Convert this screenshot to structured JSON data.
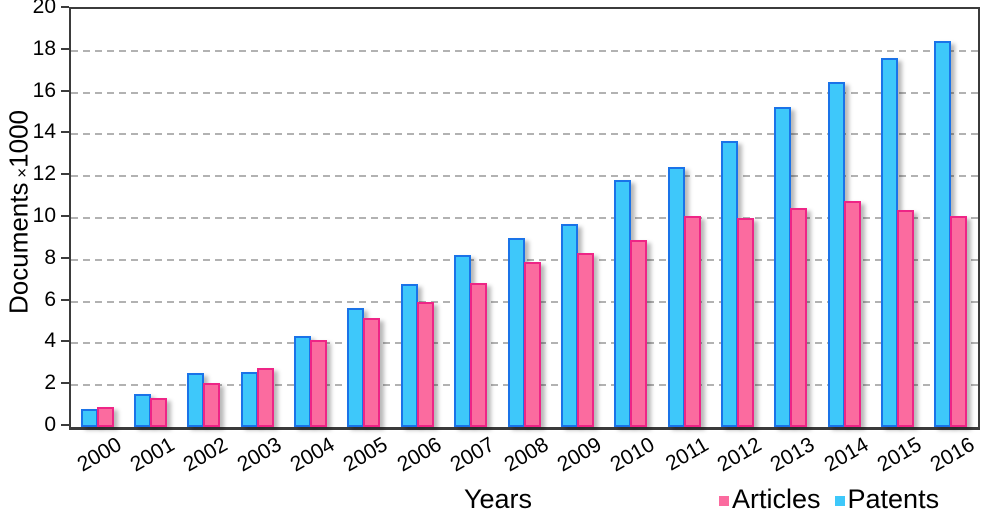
{
  "chart_data": {
    "type": "bar",
    "title": "",
    "xlabel": "Years",
    "ylabel": "Documents ×1000",
    "ylabel_rich": {
      "prefix": "Documents",
      "times_symbol": "×",
      "suffix": "1000"
    },
    "ylim": [
      0,
      20
    ],
    "ytick_step": 2,
    "ytick_labels": [
      "0",
      "2",
      "4",
      "6",
      "8",
      "10",
      "12",
      "14",
      "16",
      "18",
      "20"
    ],
    "grid": "horizontal-dashed",
    "gridline_color": "#b2b2b2",
    "axis_color": "#3b3b3b",
    "legend_position": "bottom-right",
    "legend_order": [
      "Articles",
      "Patents"
    ],
    "categories": [
      "2000",
      "2001",
      "2002",
      "2003",
      "2004",
      "2005",
      "2006",
      "2007",
      "2008",
      "2009",
      "2010",
      "2011",
      "2012",
      "2013",
      "2014",
      "2015",
      "2016"
    ],
    "series": [
      {
        "name": "Patents",
        "fill_color": "#3ec8fa",
        "border_color": "#1a73e8",
        "values": [
          0.85,
          1.6,
          2.6,
          2.65,
          4.35,
          5.7,
          6.85,
          8.25,
          9.05,
          9.7,
          11.8,
          12.45,
          13.7,
          15.3,
          16.5,
          17.65,
          18.45
        ]
      },
      {
        "name": "Articles",
        "fill_color": "#fb6b9f",
        "border_color": "#ee2586",
        "values": [
          0.95,
          1.4,
          2.1,
          2.8,
          4.15,
          5.2,
          6.0,
          6.9,
          7.9,
          8.35,
          8.95,
          10.1,
          10.0,
          10.5,
          10.8,
          10.4,
          10.1
        ]
      }
    ]
  }
}
